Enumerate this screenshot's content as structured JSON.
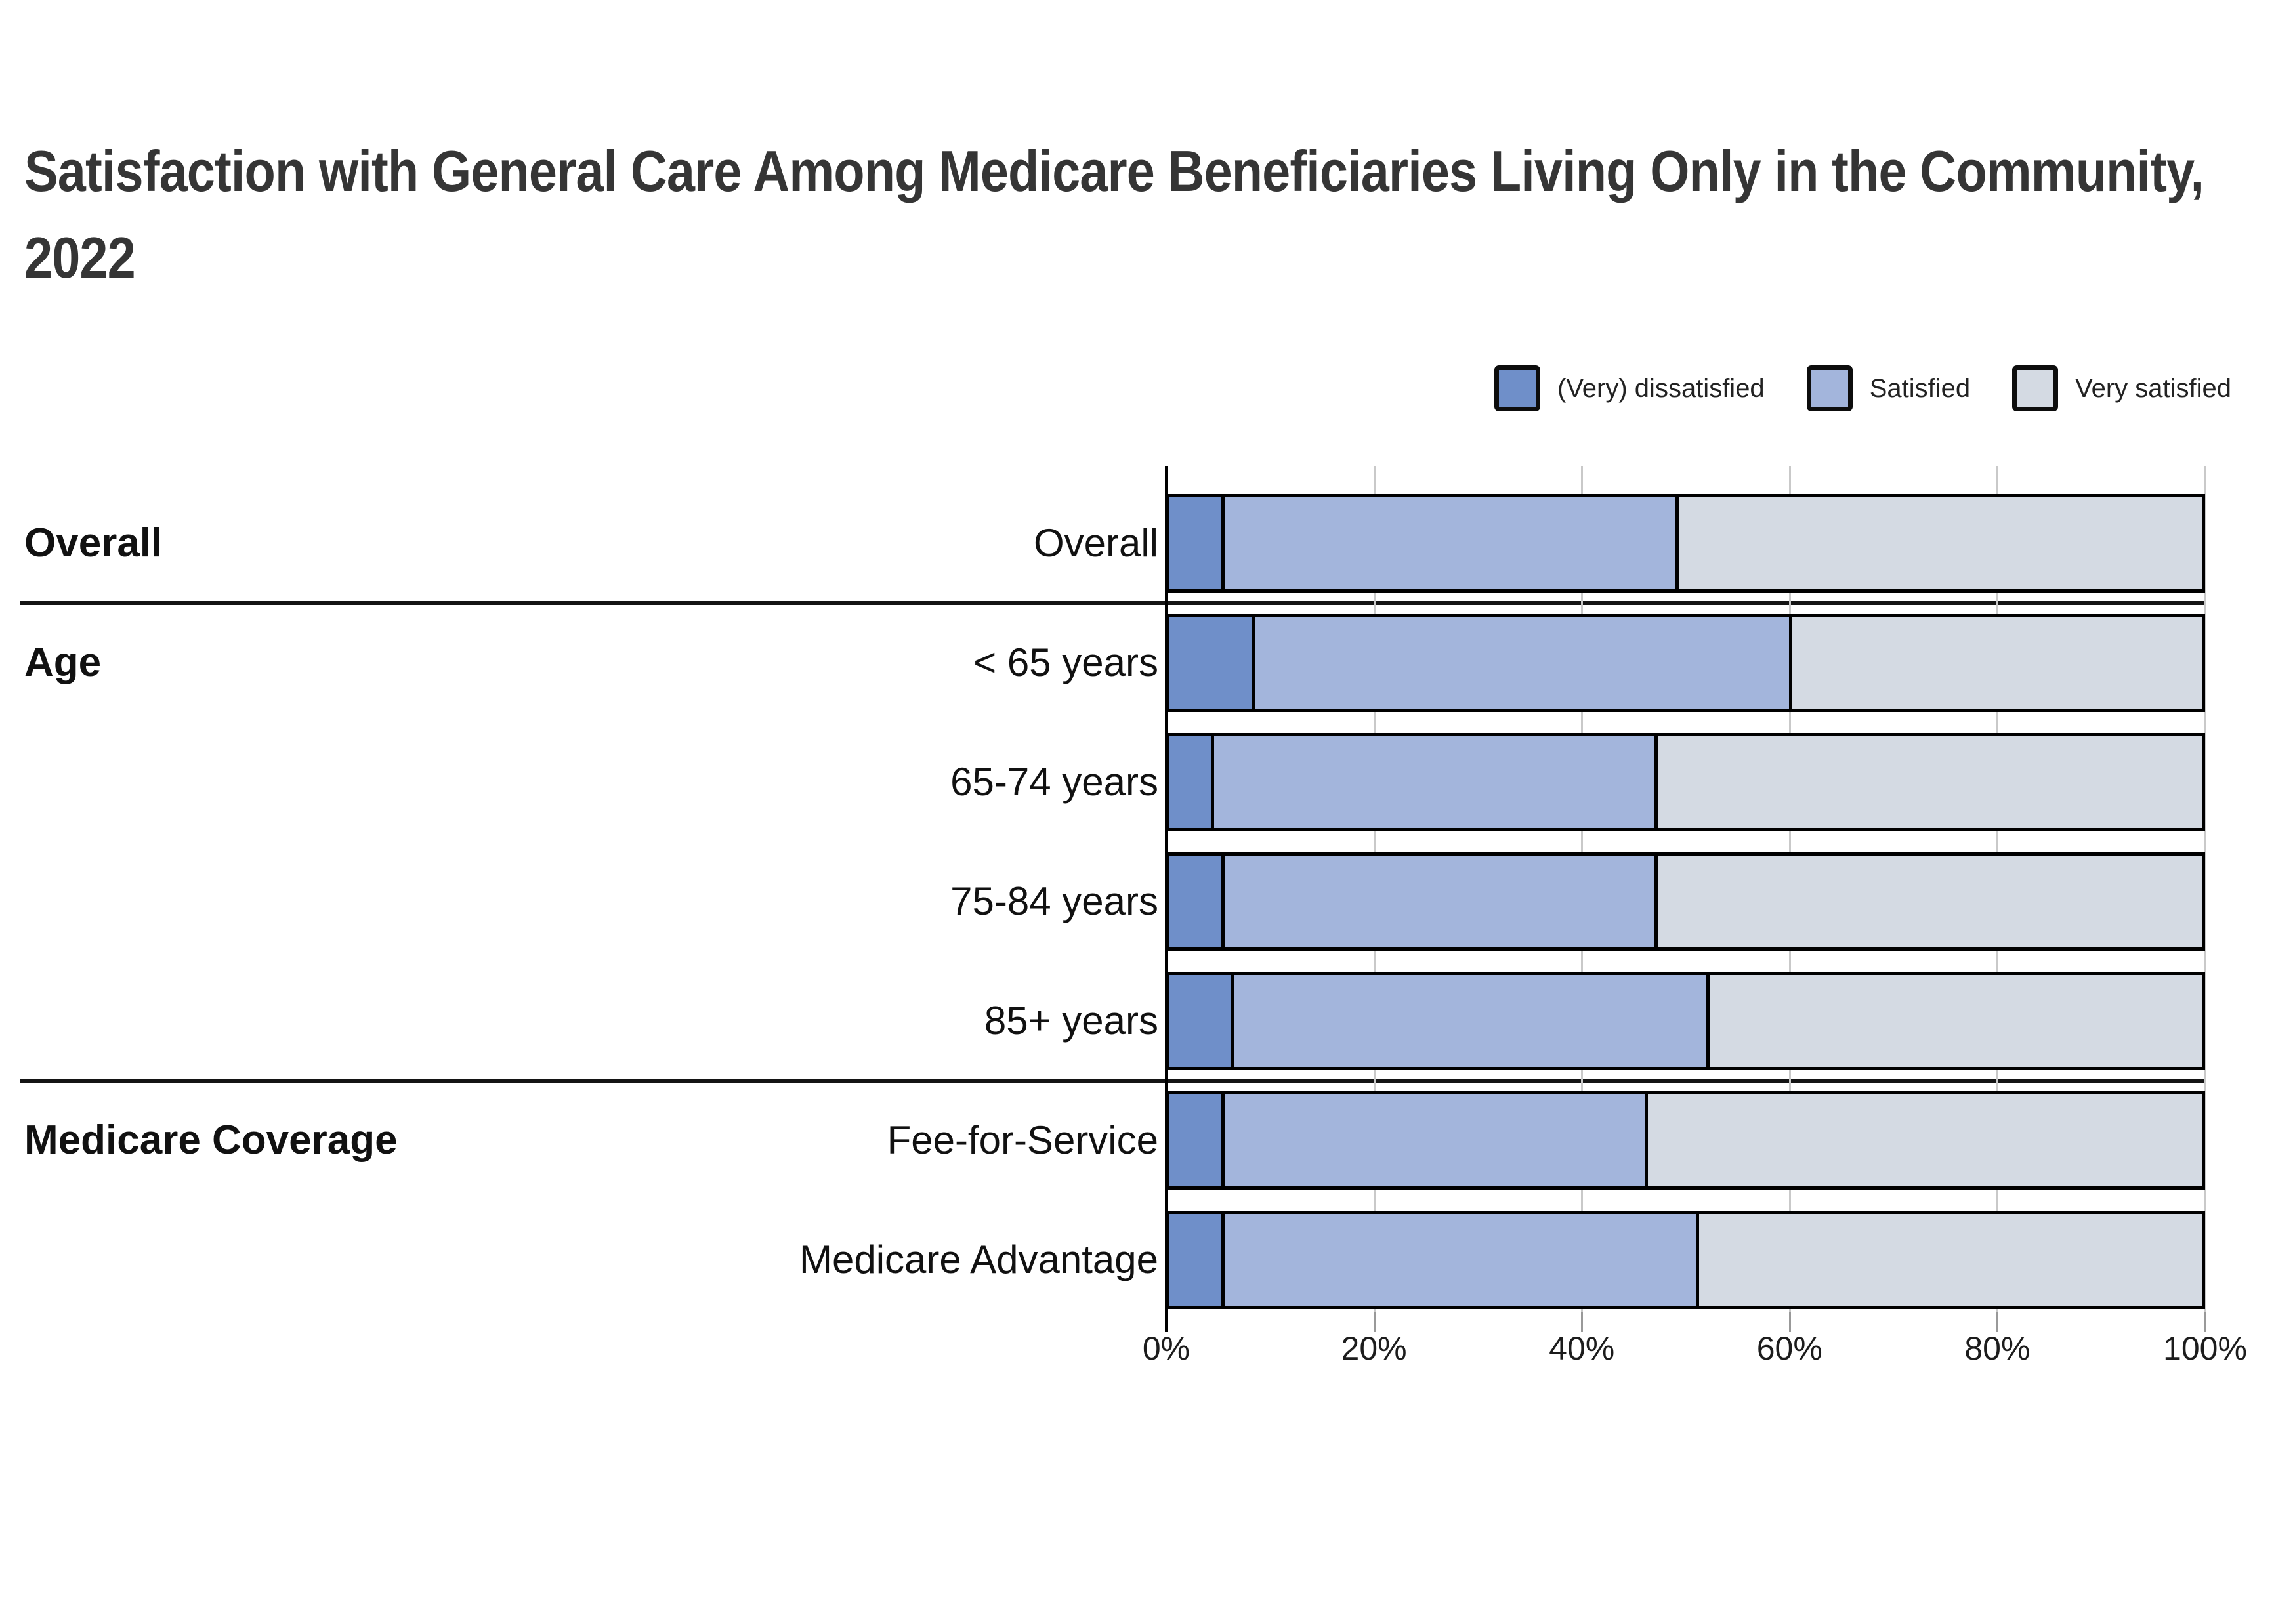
{
  "title": "Satisfaction with General Care Among Medicare Beneficiaries Living Only in the Community, 2022",
  "legend": [
    {
      "label": "(Very) dissatisfied",
      "color": "#6f8fc9"
    },
    {
      "label": "Satisfied",
      "color": "#a3b5dc"
    },
    {
      "label": "Very satisfied",
      "color": "#d4dae3"
    }
  ],
  "chart_data": {
    "type": "bar",
    "orientation": "horizontal",
    "stacked": true,
    "title": "Satisfaction with General Care Among Medicare Beneficiaries Living Only in the Community, 2022",
    "categories": [
      "Overall",
      "< 65 years",
      "65-74 years",
      "75-84 years",
      "85+ years",
      "Fee-for-Service",
      "Medicare Advantage"
    ],
    "groups": [
      {
        "label": "Overall",
        "first_row": 0,
        "rows": [
          "Overall"
        ]
      },
      {
        "label": "Age",
        "first_row": 1,
        "rows": [
          "< 65 years",
          "65-74 years",
          "75-84 years",
          "85+ years"
        ]
      },
      {
        "label": "Medicare Coverage",
        "first_row": 5,
        "rows": [
          "Fee-for-Service",
          "Medicare Advantage"
        ]
      }
    ],
    "series": [
      {
        "name": "(Very) dissatisfied",
        "color": "#6f8fc9",
        "values": [
          5,
          8,
          4,
          5,
          6,
          5,
          5
        ]
      },
      {
        "name": "Satisfied",
        "color": "#a3b5dc",
        "values": [
          44,
          52,
          43,
          42,
          46,
          41,
          46
        ]
      },
      {
        "name": "Very satisfied",
        "color": "#d4dae3",
        "values": [
          51,
          40,
          53,
          53,
          48,
          54,
          49
        ]
      }
    ],
    "x_axis": {
      "min": 0,
      "max": 100,
      "unit": "%",
      "ticks": [
        "0%",
        "20%",
        "40%",
        "60%",
        "80%",
        "100%"
      ]
    },
    "legend_position": "top-right",
    "grid": true
  }
}
